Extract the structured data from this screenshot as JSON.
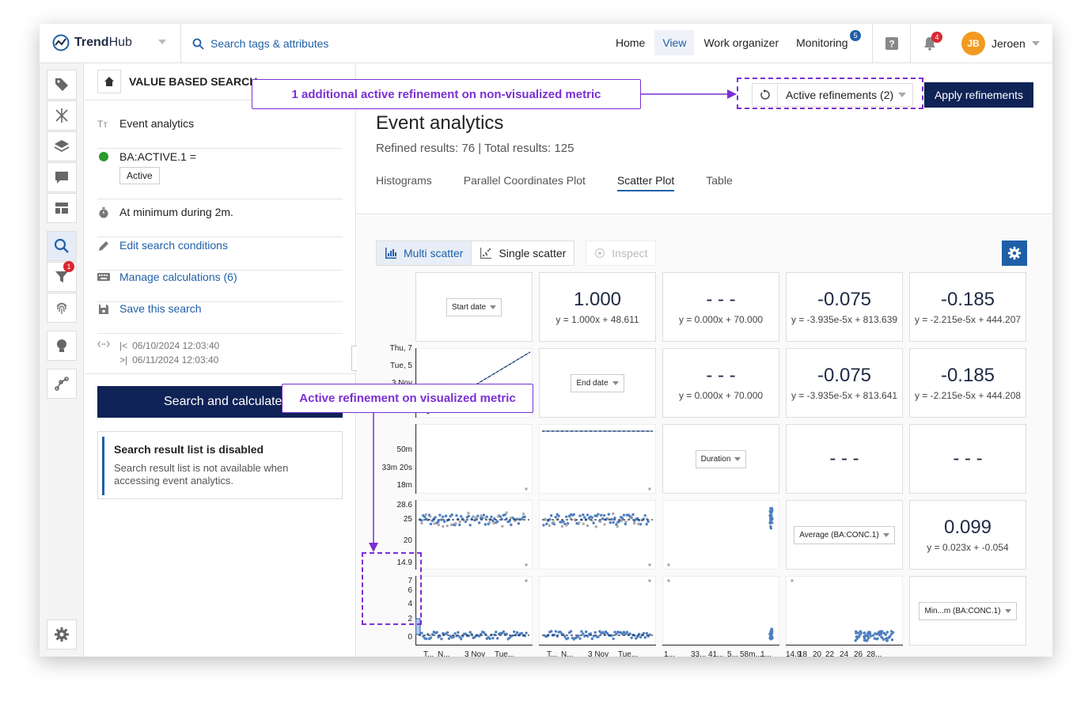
{
  "brand": {
    "name_bold": "Trend",
    "name_light": "Hub"
  },
  "topbar": {
    "search_label": "Search tags & attributes",
    "nav": [
      {
        "label": "Home",
        "active": false
      },
      {
        "label": "View",
        "active": true
      },
      {
        "label": "Work organizer",
        "active": false
      },
      {
        "label": "Monitoring",
        "active": false,
        "badge": "5"
      }
    ],
    "notifications_badge": "4",
    "user": {
      "initials": "JB",
      "name": "Jeroen"
    }
  },
  "rail": {
    "filter_badge": "1"
  },
  "panel": {
    "title": "VALUE BASED SEARCH",
    "event_analytics": "Event analytics",
    "condition": {
      "name": "BA:ACTIVE.1 =",
      "value": "Active"
    },
    "duration_rule": "At minimum during 2m.",
    "edit_conditions": "Edit search conditions",
    "manage_calculations": "Manage calculations (6)",
    "save_search": "Save this search",
    "date_from": "06/10/2024 12:03:40",
    "date_to": "06/11/2024 12:03:40",
    "search_button": "Search and calculate",
    "notice_title": "Search result list is disabled",
    "notice_text": "Search result list is not available when accessing event analytics."
  },
  "main": {
    "refinements_button": "Active refinements (2)",
    "apply_button": "Apply refinements",
    "title": "Event analytics",
    "subtitle": "Refined results: 76 | Total results: 125",
    "tabs": [
      "Histograms",
      "Parallel Coordinates Plot",
      "Scatter Plot",
      "Table"
    ],
    "active_tab": 2,
    "multi_scatter": "Multi scatter",
    "single_scatter": "Single scatter",
    "inspect": "Inspect"
  },
  "matrix": {
    "variables": [
      "Start date",
      "End date",
      "Duration",
      "Average (BA:CONC.1)",
      "Min...m (BA:CONC.1)"
    ],
    "correlations": {
      "r0c1": {
        "value": "1.000",
        "eq": "y = 1.000x + 48.611"
      },
      "r0c2": {
        "value": "- - -",
        "eq": "y = 0.000x + 70.000"
      },
      "r0c3": {
        "value": "-0.075",
        "eq": "y = -3.935e-5x + 813.639"
      },
      "r0c4": {
        "value": "-0.185",
        "eq": "y = -2.215e-5x + 444.207"
      },
      "r1c2": {
        "value": "- - -",
        "eq": "y = 0.000x + 70.000"
      },
      "r1c3": {
        "value": "-0.075",
        "eq": "y = -3.935e-5x + 813.641"
      },
      "r1c4": {
        "value": "-0.185",
        "eq": "y = -2.215e-5x + 444.208"
      },
      "r2c3": {
        "value": "- - -",
        "eq": ""
      },
      "r2c4": {
        "value": "- - -",
        "eq": ""
      },
      "r3c4": {
        "value": "0.099",
        "eq": "y = 0.023x + -0.054"
      }
    },
    "y_ticks": {
      "row1": [
        "Thu, 7",
        "Tue, 5",
        "3 Nov",
        "Nov"
      ],
      "row2": [
        "50m",
        "33m 20s",
        "18m"
      ],
      "row3": [
        "28.6",
        "25",
        "20",
        "14.9"
      ],
      "row4": [
        "7",
        "6",
        "4",
        "2",
        "0"
      ]
    },
    "x_ticks": {
      "col0": [
        "T...",
        "N...",
        "3 Nov",
        "Tue..."
      ],
      "col1": [
        "T...",
        "N...",
        "3 Nov",
        "Tue..."
      ],
      "col2": [
        "1...",
        "33...",
        "41...",
        "5...",
        "58m...",
        "1..."
      ],
      "col3": [
        "14.9",
        "18",
        "20",
        "22",
        "24",
        "26",
        "28..."
      ]
    }
  },
  "annotations": {
    "top": "1 additional active refinement on non-visualized metric",
    "middle": "Active refinement on visualized metric"
  },
  "colors": {
    "navy": "#0f2356",
    "accent": "#1f5fa8",
    "annotation": "#7b2fd4",
    "points": "#4f7fc0"
  }
}
